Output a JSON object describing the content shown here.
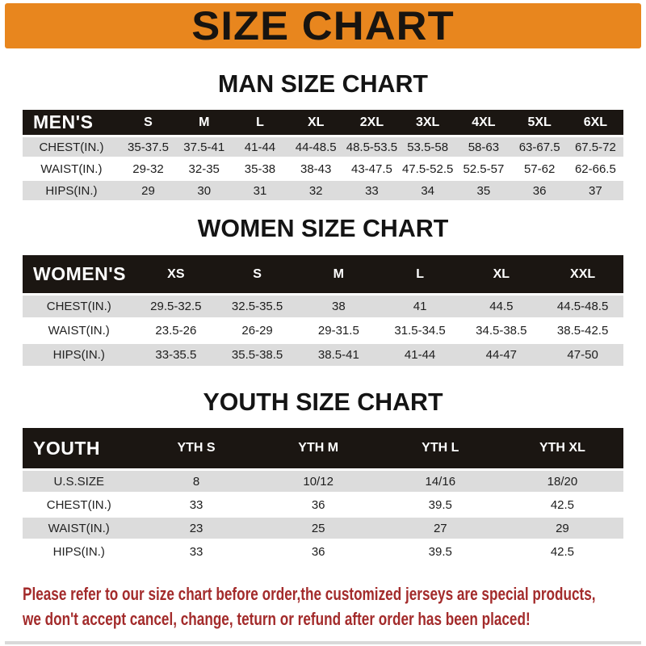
{
  "banner": {
    "title": "SIZE CHART"
  },
  "sections": [
    {
      "id": "men",
      "heading": "MAN SIZE CHART",
      "corner_label": "MEN'S",
      "columns": [
        "S",
        "M",
        "L",
        "XL",
        "2XL",
        "3XL",
        "4XL",
        "5XL",
        "6XL"
      ],
      "rows": [
        {
          "label": "CHEST(IN.)",
          "values": [
            "35-37.5",
            "37.5-41",
            "41-44",
            "44-48.5",
            "48.5-53.5",
            "53.5-58",
            "58-63",
            "63-67.5",
            "67.5-72"
          ]
        },
        {
          "label": "WAIST(IN.)",
          "values": [
            "29-32",
            "32-35",
            "35-38",
            "38-43",
            "43-47.5",
            "47.5-52.5",
            "52.5-57",
            "57-62",
            "62-66.5"
          ]
        },
        {
          "label": "HIPS(IN.)",
          "values": [
            "29",
            "30",
            "31",
            "32",
            "33",
            "34",
            "35",
            "36",
            "37"
          ]
        }
      ]
    },
    {
      "id": "women",
      "heading": "WOMEN SIZE CHART",
      "corner_label": "WOMEN'S",
      "columns": [
        "XS",
        "S",
        "M",
        "L",
        "XL",
        "XXL"
      ],
      "rows": [
        {
          "label": "CHEST(IN.)",
          "values": [
            "29.5-32.5",
            "32.5-35.5",
            "38",
            "41",
            "44.5",
            "44.5-48.5"
          ]
        },
        {
          "label": "WAIST(IN.)",
          "values": [
            "23.5-26",
            "26-29",
            "29-31.5",
            "31.5-34.5",
            "34.5-38.5",
            "38.5-42.5"
          ]
        },
        {
          "label": "HIPS(IN.)",
          "values": [
            "33-35.5",
            "35.5-38.5",
            "38.5-41",
            "41-44",
            "44-47",
            "47-50"
          ]
        }
      ]
    },
    {
      "id": "youth",
      "heading": "YOUTH SIZE CHART",
      "corner_label": "YOUTH",
      "columns": [
        "YTH S",
        "YTH M",
        "YTH L",
        "YTH XL"
      ],
      "rows": [
        {
          "label": "U.S.SIZE",
          "values": [
            "8",
            "10/12",
            "14/16",
            "18/20"
          ]
        },
        {
          "label": "CHEST(IN.)",
          "values": [
            "33",
            "36",
            "39.5",
            "42.5"
          ]
        },
        {
          "label": "WAIST(IN.)",
          "values": [
            "23",
            "25",
            "27",
            "29"
          ]
        },
        {
          "label": "HIPS(IN.)",
          "values": [
            "33",
            "36",
            "39.5",
            "42.5"
          ]
        }
      ]
    }
  ],
  "disclaimer": {
    "line1": "Please refer to our size chart before order,the customized jerseys are special products,",
    "line2": "we don't accept cancel, change, teturn or refund after order has been placed!"
  },
  "colors": {
    "banner_bg": "#E8861E",
    "header_bar": "#1B1612",
    "row_stripe": "#DCDCDC",
    "disclaimer_red": "#A32B2B"
  }
}
